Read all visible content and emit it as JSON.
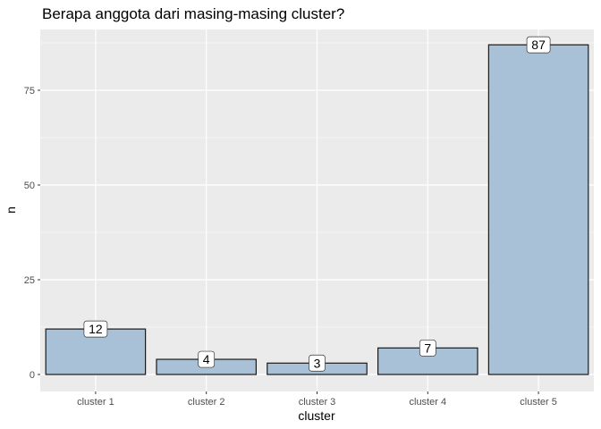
{
  "chart_data": {
    "type": "bar",
    "title": "Berapa anggota dari masing-masing cluster?",
    "xlabel": "cluster",
    "ylabel": "n",
    "categories": [
      "cluster 1",
      "cluster 2",
      "cluster 3",
      "cluster 4",
      "cluster 5"
    ],
    "values": [
      12,
      4,
      3,
      7,
      87
    ],
    "data_labels": [
      "12",
      "4",
      "3",
      "7",
      "87"
    ],
    "y_ticks": [
      0,
      25,
      50,
      75
    ],
    "y_tick_labels": [
      "0",
      "25",
      "50",
      "75"
    ],
    "ylim": [
      0,
      91.35
    ],
    "grid": true,
    "legend": "none",
    "colors": {
      "bar_fill": "#a9c1d6",
      "bar_stroke": "#1a1a1a",
      "panel_bg": "#ebebeb",
      "grid_major": "#ffffff",
      "label_bg": "#ffffff"
    }
  }
}
